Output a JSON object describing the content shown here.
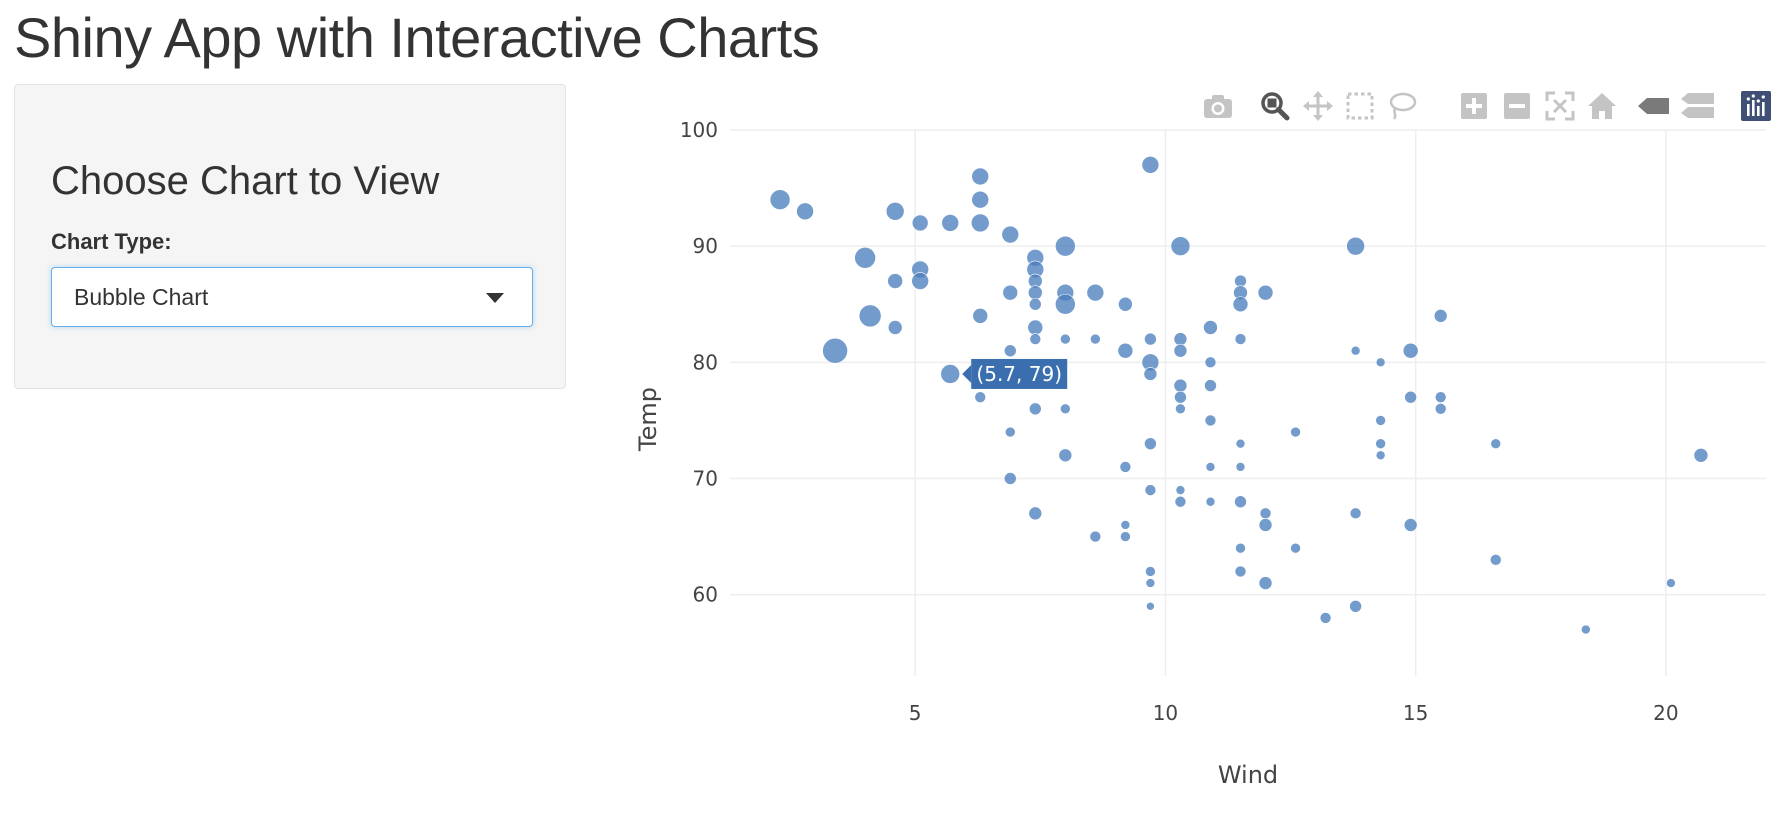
{
  "page": {
    "title": "Shiny App with Interactive Charts"
  },
  "sidebar": {
    "heading": "Choose Chart to View",
    "control_label": "Chart Type:",
    "select": {
      "value": "Bubble Chart"
    }
  },
  "modebar": {
    "buttons": [
      {
        "name": "camera-icon"
      },
      {
        "name": "zoom-icon"
      },
      {
        "name": "pan-icon"
      },
      {
        "name": "box-select-icon"
      },
      {
        "name": "lasso-select-icon"
      },
      {
        "name": "zoom-in-icon"
      },
      {
        "name": "zoom-out-icon"
      },
      {
        "name": "autoscale-icon"
      },
      {
        "name": "reset-axes-icon"
      },
      {
        "name": "hover-closest-icon"
      },
      {
        "name": "hover-compare-icon"
      },
      {
        "name": "plotly-logo-icon"
      }
    ]
  },
  "colors": {
    "marker": "#4c7fbe",
    "tooltip": "#3a6eae",
    "logo": "#3f4f75"
  },
  "chart_data": {
    "type": "scatter",
    "xlabel": "Wind",
    "ylabel": "Temp",
    "xlim": [
      1.3,
      22
    ],
    "ylim": [
      53,
      100
    ],
    "xticks": [
      5,
      10,
      15,
      20
    ],
    "yticks": [
      60,
      70,
      80,
      90,
      100
    ],
    "grid": true,
    "points": [
      [
        2.3,
        94,
        20
      ],
      [
        2.8,
        93,
        17
      ],
      [
        3.4,
        81,
        25
      ],
      [
        4.0,
        89,
        21
      ],
      [
        4.1,
        84,
        22
      ],
      [
        4.6,
        93,
        18
      ],
      [
        4.6,
        87,
        15
      ],
      [
        4.6,
        83,
        14
      ],
      [
        5.1,
        92,
        16
      ],
      [
        5.1,
        88,
        17
      ],
      [
        5.1,
        87,
        17
      ],
      [
        5.7,
        92,
        17
      ],
      [
        5.7,
        79,
        19
      ],
      [
        6.3,
        96,
        17
      ],
      [
        6.3,
        94,
        17
      ],
      [
        6.3,
        92,
        18
      ],
      [
        6.3,
        84,
        15
      ],
      [
        6.3,
        77,
        11
      ],
      [
        6.9,
        91,
        17
      ],
      [
        6.9,
        86,
        15
      ],
      [
        6.9,
        81,
        12
      ],
      [
        6.9,
        74,
        10
      ],
      [
        6.9,
        70,
        12
      ],
      [
        7.4,
        89,
        17
      ],
      [
        7.4,
        88,
        17
      ],
      [
        7.4,
        87,
        14
      ],
      [
        7.4,
        86,
        14
      ],
      [
        7.4,
        85,
        12
      ],
      [
        7.4,
        83,
        15
      ],
      [
        7.4,
        82,
        11
      ],
      [
        7.4,
        76,
        12
      ],
      [
        7.4,
        67,
        13
      ],
      [
        8.0,
        90,
        20
      ],
      [
        8.0,
        86,
        17
      ],
      [
        8.0,
        85,
        20
      ],
      [
        8.0,
        82,
        10
      ],
      [
        8.0,
        76,
        10
      ],
      [
        8.0,
        72,
        13
      ],
      [
        8.6,
        86,
        17
      ],
      [
        8.6,
        82,
        10
      ],
      [
        8.6,
        65,
        11
      ],
      [
        9.2,
        85,
        14
      ],
      [
        9.2,
        81,
        15
      ],
      [
        9.2,
        71,
        11
      ],
      [
        9.2,
        66,
        9
      ],
      [
        9.2,
        65,
        10
      ],
      [
        9.7,
        97,
        17
      ],
      [
        9.7,
        82,
        12
      ],
      [
        9.7,
        80,
        17
      ],
      [
        9.7,
        79,
        13
      ],
      [
        9.7,
        73,
        12
      ],
      [
        9.7,
        69,
        11
      ],
      [
        9.7,
        62,
        10
      ],
      [
        9.7,
        61,
        9
      ],
      [
        9.7,
        59,
        8
      ],
      [
        10.3,
        90,
        19
      ],
      [
        10.3,
        82,
        13
      ],
      [
        10.3,
        81,
        13
      ],
      [
        10.3,
        78,
        13
      ],
      [
        10.3,
        77,
        12
      ],
      [
        10.3,
        76,
        10
      ],
      [
        10.3,
        69,
        9
      ],
      [
        10.3,
        68,
        11
      ],
      [
        10.9,
        83,
        14
      ],
      [
        10.9,
        80,
        11
      ],
      [
        10.9,
        78,
        12
      ],
      [
        10.9,
        75,
        11
      ],
      [
        10.9,
        71,
        9
      ],
      [
        10.9,
        68,
        9
      ],
      [
        11.5,
        87,
        12
      ],
      [
        11.5,
        86,
        14
      ],
      [
        11.5,
        85,
        15
      ],
      [
        11.5,
        82,
        11
      ],
      [
        11.5,
        73,
        9
      ],
      [
        11.5,
        71,
        9
      ],
      [
        11.5,
        68,
        12
      ],
      [
        11.5,
        64,
        10
      ],
      [
        11.5,
        62,
        11
      ],
      [
        12.0,
        86,
        15
      ],
      [
        12.0,
        67,
        11
      ],
      [
        12.0,
        66,
        13
      ],
      [
        12.0,
        61,
        13
      ],
      [
        12.6,
        74,
        10
      ],
      [
        12.6,
        64,
        10
      ],
      [
        13.2,
        58,
        11
      ],
      [
        13.8,
        90,
        18
      ],
      [
        13.8,
        81,
        9
      ],
      [
        13.8,
        67,
        11
      ],
      [
        13.8,
        59,
        12
      ],
      [
        14.3,
        80,
        9
      ],
      [
        14.3,
        75,
        10
      ],
      [
        14.3,
        73,
        10
      ],
      [
        14.3,
        72,
        9
      ],
      [
        14.9,
        81,
        15
      ],
      [
        14.9,
        77,
        12
      ],
      [
        14.9,
        66,
        13
      ],
      [
        15.5,
        84,
        13
      ],
      [
        15.5,
        77,
        11
      ],
      [
        15.5,
        76,
        11
      ],
      [
        16.6,
        73,
        10
      ],
      [
        16.6,
        63,
        11
      ],
      [
        18.4,
        57,
        9
      ],
      [
        20.1,
        61,
        9
      ],
      [
        20.7,
        72,
        14
      ]
    ],
    "annotations": [
      {
        "text": "(5.7, 79)",
        "x": 5.7,
        "y": 79
      }
    ]
  }
}
